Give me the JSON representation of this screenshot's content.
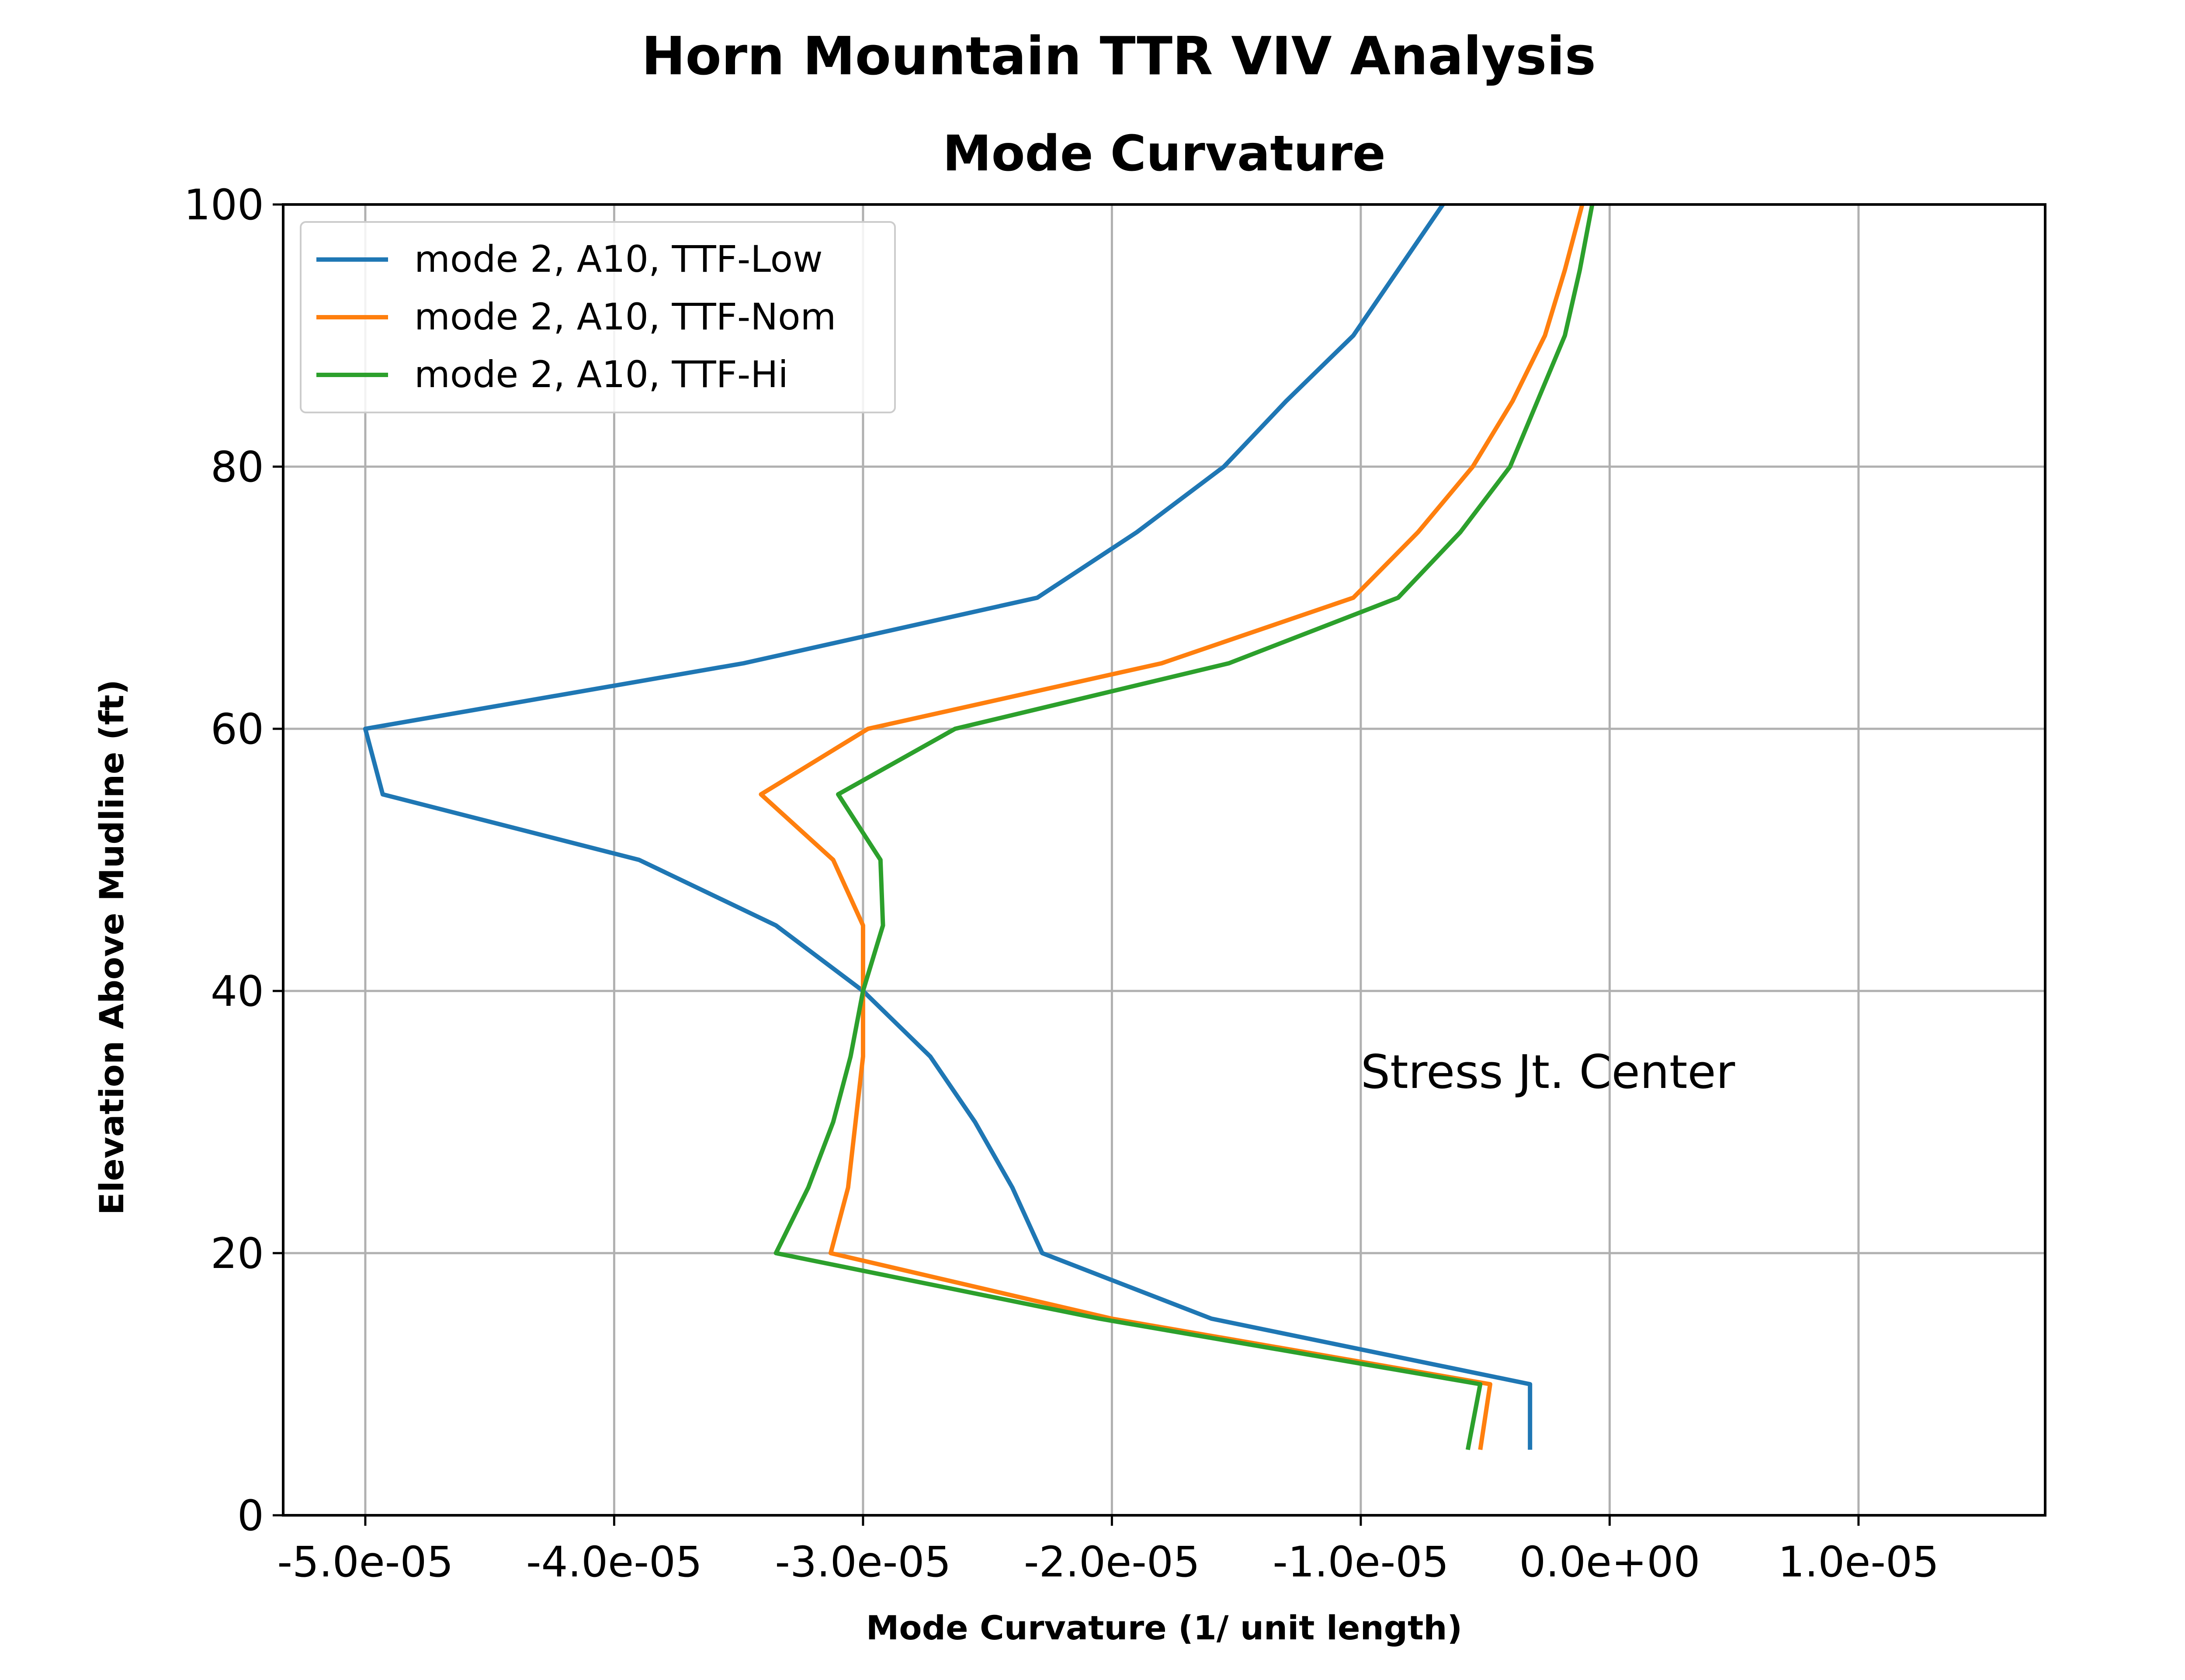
{
  "chart_data": {
    "type": "line",
    "suptitle": "Horn Mountain TTR VIV Analysis",
    "title": "Mode Curvature",
    "xlabel": "Mode Curvature (1/ unit length)",
    "ylabel": "Elevation Above Mudline (ft)",
    "xlim": [
      -5.33e-05,
      1.75e-05
    ],
    "ylim": [
      0,
      100
    ],
    "xticks": [
      -5e-05,
      -4e-05,
      -3e-05,
      -2e-05,
      -1e-05,
      0,
      1e-05
    ],
    "xtick_labels": [
      "-5.0e-05",
      "-4.0e-05",
      "-3.0e-05",
      "-2.0e-05",
      "-1.0e-05",
      "0.0e+00",
      "1.0e-05"
    ],
    "yticks": [
      0,
      20,
      40,
      60,
      80,
      100
    ],
    "ytick_labels": [
      "0",
      "20",
      "40",
      "60",
      "80",
      "100"
    ],
    "grid": true,
    "legend_position": "top-left",
    "annotation": {
      "text": "Stress Jt. Center",
      "x": -1e-05,
      "y": 33
    },
    "series": [
      {
        "name": "mode 2, A10, TTF-Low",
        "color": "#1f77b4",
        "points": [
          [
            -3.2e-06,
            5
          ],
          [
            -3.2e-06,
            10
          ],
          [
            -1.6e-05,
            15
          ],
          [
            -2.28e-05,
            20
          ],
          [
            -2.4e-05,
            25
          ],
          [
            -2.55e-05,
            30
          ],
          [
            -2.73e-05,
            35
          ],
          [
            -3e-05,
            40
          ],
          [
            -3.35e-05,
            45
          ],
          [
            -3.9e-05,
            50
          ],
          [
            -4.93e-05,
            55
          ],
          [
            -5e-05,
            60
          ],
          [
            -3.48e-05,
            65
          ],
          [
            -2.3e-05,
            70
          ],
          [
            -1.9e-05,
            75
          ],
          [
            -1.55e-05,
            80
          ],
          [
            -1.3e-05,
            85
          ],
          [
            -1.03e-05,
            90
          ],
          [
            -8.5e-06,
            95
          ],
          [
            -6.7e-06,
            100
          ]
        ]
      },
      {
        "name": "mode 2, A10, TTF-Nom",
        "color": "#ff7f0e",
        "points": [
          [
            -5.2e-06,
            5
          ],
          [
            -4.8e-06,
            10
          ],
          [
            -2e-05,
            15
          ],
          [
            -3.13e-05,
            20
          ],
          [
            -3.06e-05,
            25
          ],
          [
            -3.03e-05,
            30
          ],
          [
            -3e-05,
            35
          ],
          [
            -3e-05,
            40
          ],
          [
            -3e-05,
            45
          ],
          [
            -3.12e-05,
            50
          ],
          [
            -3.41e-05,
            55
          ],
          [
            -2.98e-05,
            60
          ],
          [
            -1.8e-05,
            65
          ],
          [
            -1.03e-05,
            70
          ],
          [
            -7.7e-06,
            75
          ],
          [
            -5.5e-06,
            80
          ],
          [
            -3.9e-06,
            85
          ],
          [
            -2.6e-06,
            90
          ],
          [
            -1.8e-06,
            95
          ],
          [
            -1.1e-06,
            100
          ]
        ]
      },
      {
        "name": "mode 2, A10, TTF-Hi",
        "color": "#2ca02c",
        "points": [
          [
            -5.7e-06,
            5
          ],
          [
            -5.2e-06,
            10
          ],
          [
            -2.05e-05,
            15
          ],
          [
            -3.35e-05,
            20
          ],
          [
            -3.22e-05,
            25
          ],
          [
            -3.12e-05,
            30
          ],
          [
            -3.05e-05,
            35
          ],
          [
            -3e-05,
            40
          ],
          [
            -2.92e-05,
            45
          ],
          [
            -2.93e-05,
            50
          ],
          [
            -3.1e-05,
            55
          ],
          [
            -2.63e-05,
            60
          ],
          [
            -1.53e-05,
            65
          ],
          [
            -8.5e-06,
            70
          ],
          [
            -6e-06,
            75
          ],
          [
            -4e-06,
            80
          ],
          [
            -2.9e-06,
            85
          ],
          [
            -1.8e-06,
            90
          ],
          [
            -1.2e-06,
            95
          ],
          [
            -7e-07,
            100
          ]
        ]
      }
    ]
  }
}
